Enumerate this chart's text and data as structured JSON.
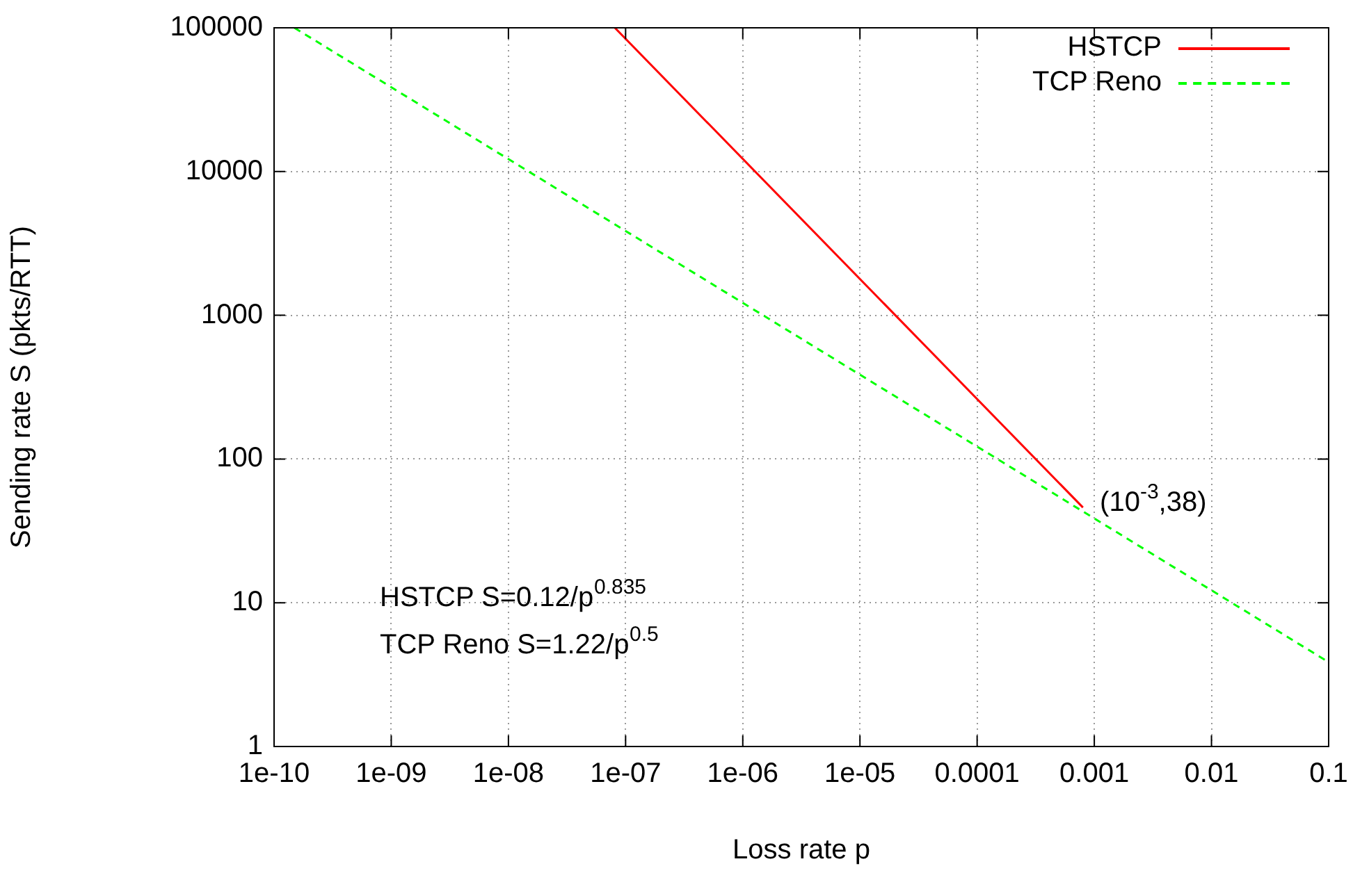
{
  "chart_data": {
    "type": "line",
    "xlabel": "Loss rate p",
    "ylabel": "Sending rate S (pkts/RTT)",
    "log": "xy",
    "grid": true,
    "legend": "top right",
    "marker": "none",
    "xlim": [
      1e-10,
      0.1
    ],
    "xticks": [
      {
        "value": 1e-10,
        "label": "1e-10"
      },
      {
        "value": 1e-09,
        "label": "1e-09"
      },
      {
        "value": 1e-08,
        "label": "1e-08"
      },
      {
        "value": 1e-07,
        "label": "1e-07"
      },
      {
        "value": 1e-06,
        "label": "1e-06"
      },
      {
        "value": 1e-05,
        "label": "1e-05"
      },
      0.0001,
      0.001,
      0.01,
      0.1
    ],
    "ylim": [
      1,
      100000
    ],
    "yticks": [
      1,
      10,
      100,
      1000,
      10000,
      100000
    ],
    "series": [
      {
        "name": "HSTCP",
        "color": "#ff0000",
        "line_style": "solid",
        "x": [
          8.1e-08,
          0.0008
        ],
        "values": [
          100000,
          46
        ]
      },
      {
        "name": "TCP Reno",
        "color": "#00ff00",
        "line_style": "dashed",
        "x": [
          1.49e-10,
          0.1
        ],
        "values": [
          100000,
          3.86
        ]
      }
    ],
    "annotations": [
      {
        "text": "(10$^{-3}$,38)",
        "x": 0.001,
        "y": 38
      },
      "HSTCP S=0.12/p$^{0.835}$",
      "TCP Reno S=1.22/p$^{0.5}$"
    ]
  }
}
